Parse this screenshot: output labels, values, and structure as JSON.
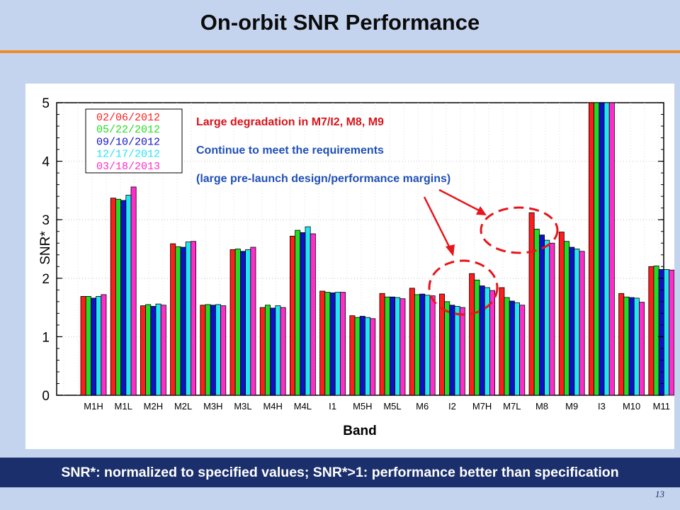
{
  "slide": {
    "title": "On-orbit SNR Performance",
    "footer": "SNR*: normalized to specified values; SNR*>1: performance better than specification",
    "page_number": "13"
  },
  "colors": {
    "background": "#c5d4ee",
    "title_rule": "#ef8c2a",
    "footer_bg": "#1a2f6b",
    "annotation_red": "#d9141b",
    "annotation_blue": "#1f4fb5"
  },
  "annotations": [
    {
      "text": "Large degradation in M7/I2, M8, M9",
      "color": "#d9141b"
    },
    {
      "text": "Continue to meet the requirements",
      "color": "#1f4fb5"
    },
    {
      "text": "(large pre-launch design/performance margins)",
      "color": "#1f4fb5"
    }
  ],
  "chart_data": {
    "type": "bar",
    "xlabel": "Band",
    "ylabel": "SNR*",
    "ylim": [
      0,
      5
    ],
    "yticks": [
      "0",
      "1",
      "2",
      "3",
      "4",
      "5"
    ],
    "categories": [
      "M1H",
      "M1L",
      "M2H",
      "M2L",
      "M3H",
      "M3L",
      "M4H",
      "M4L",
      "I1",
      "M5H",
      "M5L",
      "M6",
      "I2",
      "M7H",
      "M7L",
      "M8",
      "M9",
      "I3",
      "M10",
      "M11"
    ],
    "legend_position": "top-left",
    "series": [
      {
        "name": "02/06/2012",
        "color": "#ff1c1c",
        "values": [
          1.69,
          3.37,
          1.53,
          2.59,
          1.54,
          2.49,
          1.5,
          2.72,
          1.78,
          1.36,
          1.74,
          1.83,
          1.73,
          2.08,
          1.84,
          3.12,
          2.79,
          5.0,
          1.74,
          2.2
        ]
      },
      {
        "name": "05/22/2012",
        "color": "#22dd22",
        "values": [
          1.69,
          3.35,
          1.55,
          2.54,
          1.55,
          2.5,
          1.54,
          2.82,
          1.76,
          1.33,
          1.68,
          1.72,
          1.6,
          1.97,
          1.67,
          2.84,
          2.63,
          5.0,
          1.68,
          2.21
        ]
      },
      {
        "name": "09/10/2012",
        "color": "#1010c8",
        "values": [
          1.66,
          3.33,
          1.52,
          2.53,
          1.54,
          2.46,
          1.49,
          2.78,
          1.75,
          1.35,
          1.68,
          1.73,
          1.54,
          1.87,
          1.61,
          2.74,
          2.53,
          5.0,
          1.67,
          2.15
        ]
      },
      {
        "name": "12/17/2012",
        "color": "#22e6f2",
        "values": [
          1.69,
          3.42,
          1.56,
          2.62,
          1.55,
          2.49,
          1.53,
          2.88,
          1.76,
          1.33,
          1.67,
          1.71,
          1.52,
          1.84,
          1.58,
          2.65,
          2.5,
          5.0,
          1.66,
          2.15
        ]
      },
      {
        "name": "03/18/2013",
        "color": "#ff2cc8",
        "values": [
          1.72,
          3.56,
          1.54,
          2.63,
          1.53,
          2.53,
          1.5,
          2.76,
          1.76,
          1.31,
          1.65,
          1.7,
          1.5,
          1.79,
          1.54,
          2.6,
          2.46,
          5.0,
          1.59,
          2.14
        ]
      }
    ]
  }
}
